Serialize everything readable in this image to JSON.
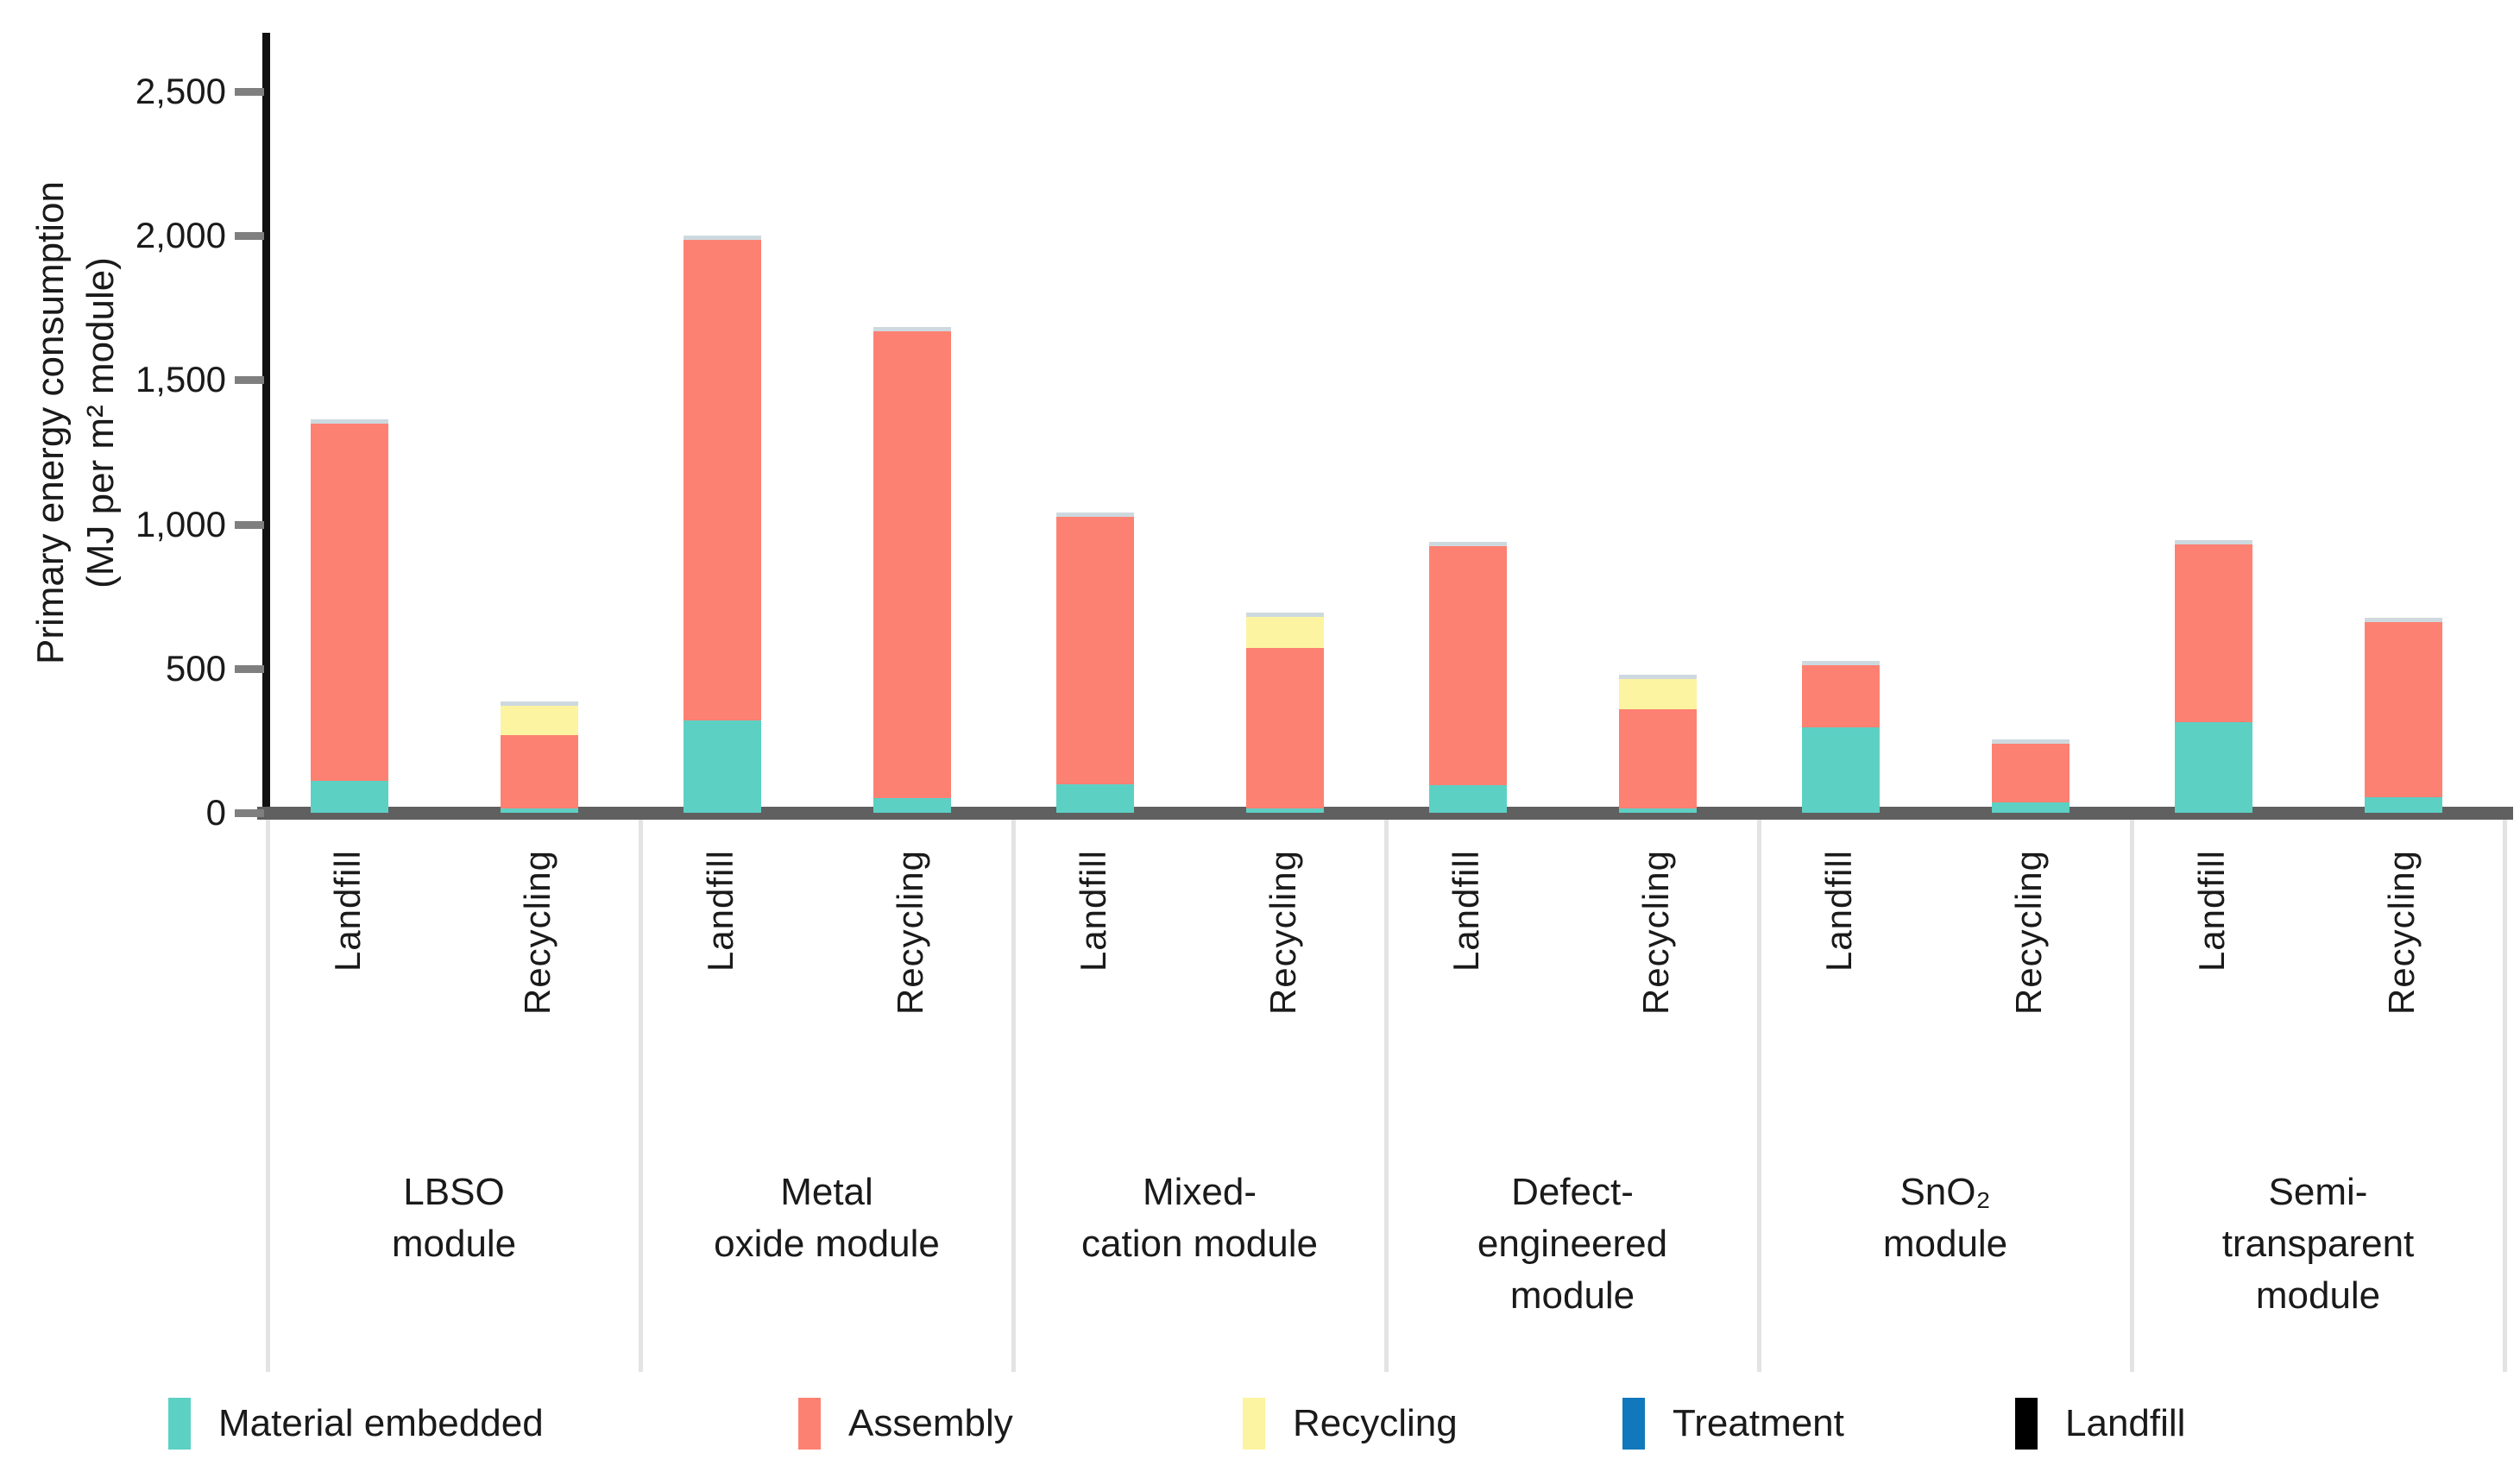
{
  "chart_data": {
    "type": "bar",
    "stacked": true,
    "title": "",
    "ylabel_line1": "Primary energy consumption",
    "ylabel_line2": "(MJ per m² module)",
    "ylim": [
      0,
      2700
    ],
    "yticks": [
      0,
      500,
      1000,
      1500,
      2000,
      2500
    ],
    "ytick_labels": [
      "0",
      "500",
      "1,000",
      "1,500",
      "2,000",
      "2,500"
    ],
    "grid": false,
    "legend_position": "bottom",
    "bar_category_labels": [
      "Landfill",
      "Recycling"
    ],
    "series": [
      {
        "key": "material_embedded",
        "name": "Material embedded",
        "color": "#5dd0c4"
      },
      {
        "key": "assembly",
        "name": "Assembly",
        "color": "#fd8172"
      },
      {
        "key": "recycling",
        "name": "Recycling",
        "color": "#fcf4a0"
      },
      {
        "key": "treatment",
        "name": "Treatment",
        "color": "#1278bc"
      },
      {
        "key": "landfill",
        "name": "Landfill",
        "color": "#000000"
      }
    ],
    "groups": [
      {
        "label_lines": [
          "LBSO",
          "module"
        ],
        "bars": [
          {
            "label": "Landfill",
            "segments": {
              "material_embedded": 110,
              "assembly": 1240,
              "recycling": 0,
              "treatment": 0,
              "landfill": 0
            }
          },
          {
            "label": "Recycling",
            "segments": {
              "material_embedded": 15,
              "assembly": 255,
              "recycling": 100,
              "treatment": 0,
              "landfill": 0
            }
          }
        ]
      },
      {
        "label_lines": [
          "Metal",
          "oxide module"
        ],
        "bars": [
          {
            "label": "Landfill",
            "segments": {
              "material_embedded": 320,
              "assembly": 1665,
              "recycling": 0,
              "treatment": 0,
              "landfill": 0
            }
          },
          {
            "label": "Recycling",
            "segments": {
              "material_embedded": 50,
              "assembly": 1620,
              "recycling": 0,
              "treatment": 0,
              "landfill": 0
            }
          }
        ]
      },
      {
        "label_lines": [
          "Mixed-",
          "cation module"
        ],
        "bars": [
          {
            "label": "Landfill",
            "segments": {
              "material_embedded": 100,
              "assembly": 925,
              "recycling": 0,
              "treatment": 0,
              "landfill": 0
            }
          },
          {
            "label": "Recycling",
            "segments": {
              "material_embedded": 15,
              "assembly": 555,
              "recycling": 110,
              "treatment": 0,
              "landfill": 0
            }
          }
        ]
      },
      {
        "label_lines": [
          "Defect-",
          "engineered",
          "module"
        ],
        "bars": [
          {
            "label": "Landfill",
            "segments": {
              "material_embedded": 95,
              "assembly": 830,
              "recycling": 0,
              "treatment": 0,
              "landfill": 0
            }
          },
          {
            "label": "Recycling",
            "segments": {
              "material_embedded": 15,
              "assembly": 345,
              "recycling": 105,
              "treatment": 0,
              "landfill": 0
            }
          }
        ]
      },
      {
        "label_lines": [
          "SnO₂",
          "module"
        ],
        "bars": [
          {
            "label": "Landfill",
            "segments": {
              "material_embedded": 295,
              "assembly": 215,
              "recycling": 0,
              "treatment": 0,
              "landfill": 0
            }
          },
          {
            "label": "Recycling",
            "segments": {
              "material_embedded": 35,
              "assembly": 205,
              "recycling": 0,
              "treatment": 0,
              "landfill": 0
            }
          }
        ]
      },
      {
        "label_lines": [
          "Semi-",
          "transparent",
          "module"
        ],
        "bars": [
          {
            "label": "Landfill",
            "segments": {
              "material_embedded": 315,
              "assembly": 615,
              "recycling": 0,
              "treatment": 0,
              "landfill": 0
            }
          },
          {
            "label": "Recycling",
            "segments": {
              "material_embedded": 55,
              "assembly": 605,
              "recycling": 0,
              "treatment": 0,
              "landfill": 0
            }
          }
        ]
      }
    ]
  }
}
